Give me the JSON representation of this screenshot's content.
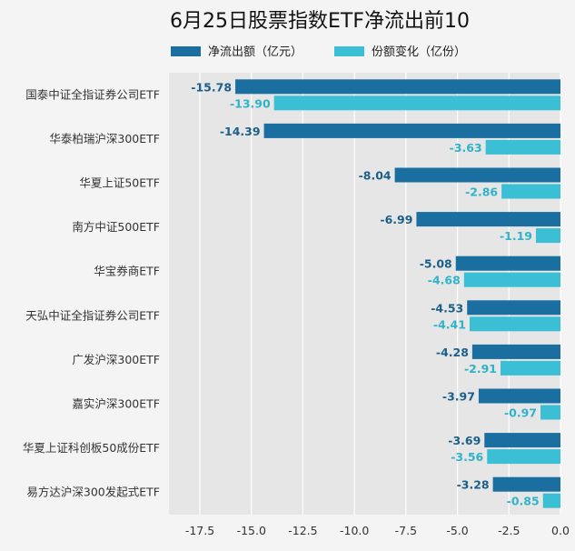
{
  "chart_data": {
    "type": "bar",
    "orientation": "horizontal",
    "title": "6月25日股票指数ETF净流出前10",
    "categories": [
      "国泰中证全指证券公司ETF",
      "华泰柏瑞沪深300ETF",
      "华夏上证50ETF",
      "南方中证500ETF",
      "华宝券商ETF",
      "天弘中证全指证券公司ETF",
      "广发沪深300ETF",
      "嘉实沪深300ETF",
      "华夏上证科创板50成份ETF",
      "易方达沪深300发起式ETF"
    ],
    "series": [
      {
        "name": "净流出额（亿元）",
        "color": "#1a6fa0",
        "values": [
          -15.78,
          -14.39,
          -8.04,
          -6.99,
          -5.08,
          -4.53,
          -4.28,
          -3.97,
          -3.69,
          -3.28
        ]
      },
      {
        "name": "份额变化（亿份）",
        "color": "#3bbfd4",
        "values": [
          -13.9,
          -3.63,
          -2.86,
          -1.19,
          -4.68,
          -4.41,
          -2.91,
          -0.97,
          -3.56,
          -0.85
        ]
      }
    ],
    "xlim": [
      -19,
      0
    ],
    "xticks": [
      -17.5,
      -15.0,
      -12.5,
      -10.0,
      -7.5,
      -5.0,
      -2.5,
      0.0
    ],
    "xtick_labels": [
      "-17.5",
      "-15.0",
      "-12.5",
      "-10.0",
      "-7.5",
      "-5.0",
      "-2.5",
      "0.0"
    ],
    "grid": true,
    "legend": "top-center"
  }
}
